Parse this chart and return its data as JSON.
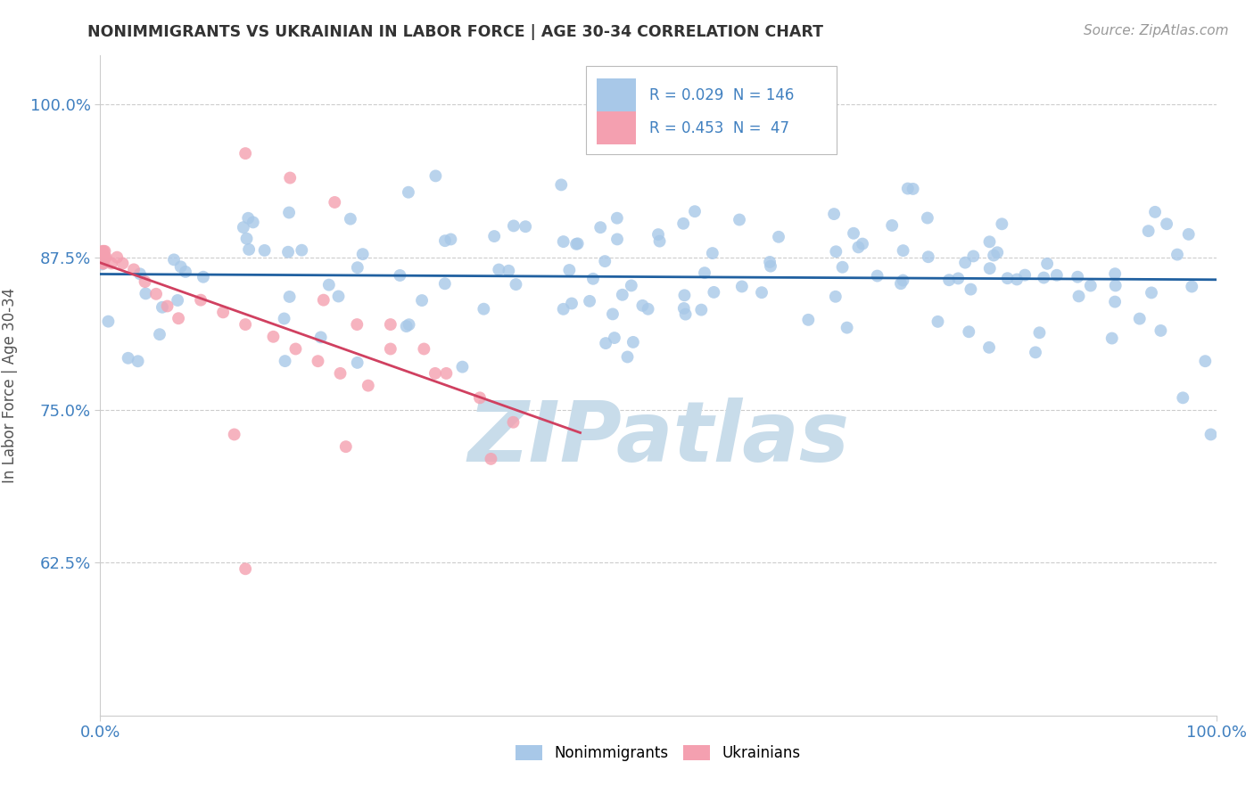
{
  "title": "NONIMMIGRANTS VS UKRAINIAN IN LABOR FORCE | AGE 30-34 CORRELATION CHART",
  "source": "Source: ZipAtlas.com",
  "ylabel": "In Labor Force | Age 30-34",
  "xlim": [
    0.0,
    1.0
  ],
  "ylim": [
    0.5,
    1.04
  ],
  "yticks": [
    0.625,
    0.75,
    0.875,
    1.0
  ],
  "ytick_labels": [
    "62.5%",
    "75.0%",
    "87.5%",
    "100.0%"
  ],
  "blue_R": 0.029,
  "blue_N": 146,
  "pink_R": 0.453,
  "pink_N": 47,
  "blue_color": "#a8c8e8",
  "pink_color": "#f4a0b0",
  "blue_line_color": "#2060a0",
  "pink_line_color": "#d04060",
  "legend_blue_label": "Nonimmigrants",
  "legend_pink_label": "Ukrainians",
  "watermark_text": "ZIPatlas",
  "watermark_color": "#d8e8f0",
  "grid_color": "#cccccc",
  "background_color": "#ffffff",
  "title_color": "#333333",
  "source_color": "#999999",
  "tick_color": "#4080c0",
  "ylabel_color": "#555555"
}
